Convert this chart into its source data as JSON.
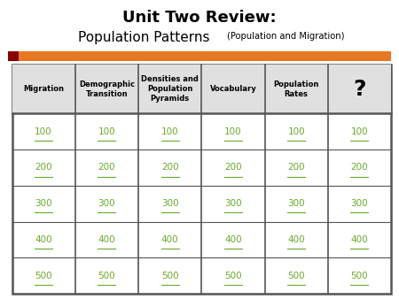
{
  "title_line1": "Unit Two Review:",
  "title_line2_large": "Population Patterns",
  "title_line2_small": "(Population and Migration)",
  "background_color": "#ffffff",
  "title_color": "#000000",
  "orange_bar_color": "#E87722",
  "dark_red_color": "#8B0000",
  "header_bg_color": "#e0e0e0",
  "header_text_color": "#000000",
  "cell_text_color": "#6aaa2a",
  "table_border_color": "#555555",
  "headers": [
    "Migration",
    "Demographic\nTransition",
    "Densities and\nPopulation\nPyramids",
    "Vocabulary",
    "Population\nRates",
    "?"
  ],
  "row_values": [
    "100",
    "200",
    "300",
    "400",
    "500"
  ],
  "num_cols": 6,
  "num_rows": 5
}
